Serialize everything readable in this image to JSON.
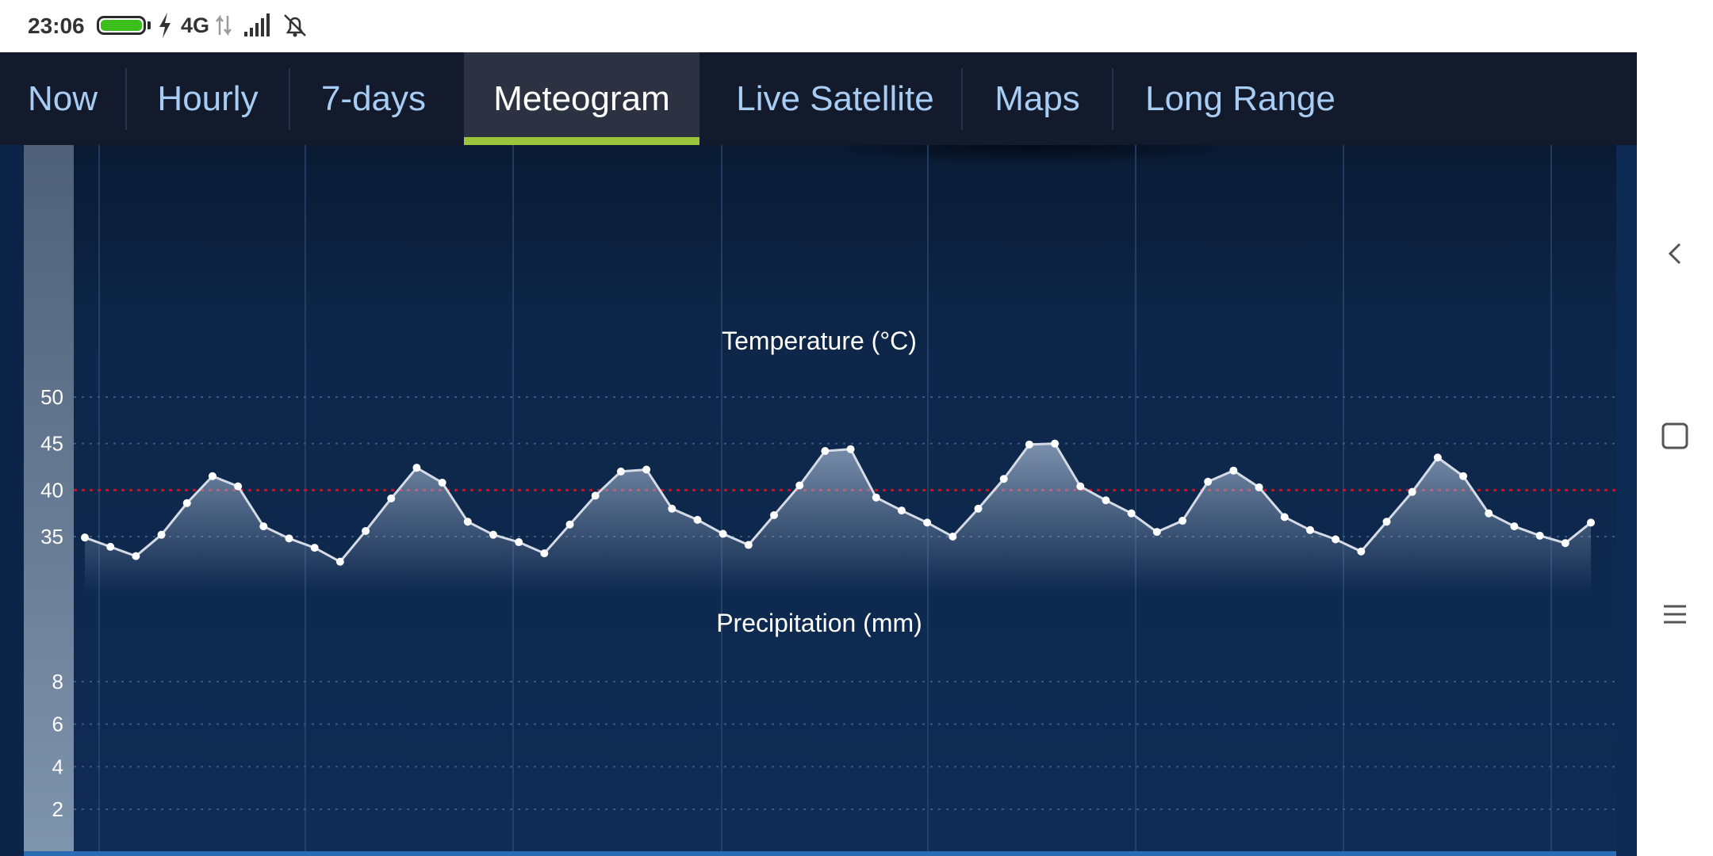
{
  "status_bar": {
    "time": "23:06",
    "network": "4G",
    "icons": [
      "battery-icon",
      "charging-icon",
      "data-arrows-icon",
      "signal-icon",
      "alarm-off-icon"
    ],
    "battery_color": "#3cbe1d"
  },
  "tabs": [
    {
      "label": "Now",
      "active": false
    },
    {
      "label": "Hourly",
      "active": false
    },
    {
      "label": "7-days",
      "active": false
    },
    {
      "label": "Meteogram",
      "active": true
    },
    {
      "label": "Live Satellite",
      "active": false
    },
    {
      "label": "Maps",
      "active": false
    },
    {
      "label": "Long Range",
      "active": false
    }
  ],
  "nav": {
    "icons": [
      "back-icon",
      "home-icon",
      "menu-icon"
    ]
  },
  "chart_data": [
    {
      "type": "area",
      "title": "Temperature (°C)",
      "y_ticks": [
        35,
        40,
        45,
        50
      ],
      "ylim": [
        30,
        55
      ],
      "reference_line": {
        "value": 40,
        "color": "#c8142a",
        "style": "dotted"
      },
      "series": [
        {
          "values": [
            34.9,
            33.9,
            32.9,
            35.2,
            38.6,
            41.5,
            40.4,
            36.1,
            34.8,
            33.8,
            32.3,
            35.6,
            39.1,
            42.4,
            40.8,
            36.6,
            35.2,
            34.4,
            33.2,
            36.3,
            39.4,
            42.0,
            42.2,
            38.0,
            36.8,
            35.3,
            34.1,
            37.3,
            40.5,
            44.2,
            44.4,
            39.2,
            37.8,
            36.5,
            35.0,
            38.0,
            41.2,
            44.9,
            45.0,
            40.4,
            38.9,
            37.5,
            35.5,
            36.7,
            40.9,
            42.1,
            40.3,
            37.1,
            35.7,
            34.7,
            33.4,
            36.6,
            39.8,
            43.5,
            41.5,
            37.5,
            36.1,
            35.1,
            34.3,
            36.5
          ]
        }
      ],
      "colors": {
        "line": "#d4dbe6",
        "point": "#ffffff"
      }
    },
    {
      "type": "area",
      "title": "Precipitation (mm)",
      "y_ticks": [
        2,
        4,
        6,
        8
      ],
      "ylim": [
        0,
        10
      ],
      "series": []
    }
  ]
}
